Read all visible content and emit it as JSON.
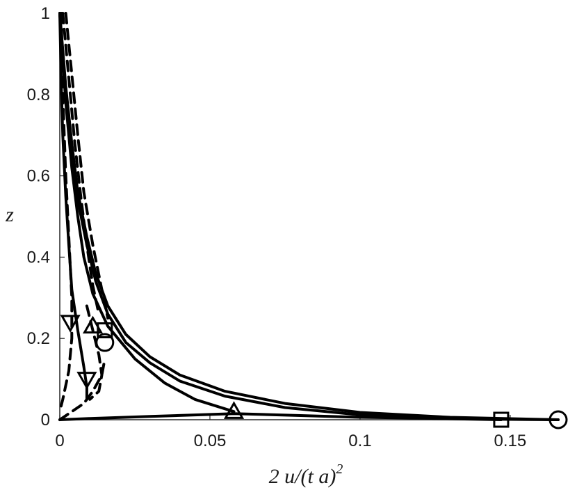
{
  "chart_data": {
    "type": "line",
    "title": "",
    "xlabel": "2 u/(t a)",
    "xlabel_superscript": "2",
    "ylabel": "z",
    "xlim": [
      0,
      0.166
    ],
    "ylim": [
      0,
      1
    ],
    "xticks": [
      0,
      0.05,
      0.1,
      0.15
    ],
    "xtick_labels": [
      "0",
      "0.05",
      "0.1",
      "0.15"
    ],
    "yticks": [
      0,
      0.2,
      0.4,
      0.6,
      0.8,
      1
    ],
    "ytick_labels": [
      "0",
      "0.2",
      "0.4",
      "0.6",
      "0.8",
      "1"
    ],
    "grid": false,
    "color": "#000000",
    "series": [
      {
        "style": "solid",
        "marker": "circle",
        "x": [
          0,
          0.002,
          0.004,
          0.006,
          0.009,
          0.012,
          0.016,
          0.022,
          0.03,
          0.04,
          0.055,
          0.075,
          0.1,
          0.13,
          0.166
        ],
        "y": [
          1,
          0.82,
          0.68,
          0.56,
          0.45,
          0.36,
          0.28,
          0.21,
          0.155,
          0.11,
          0.07,
          0.04,
          0.018,
          0.006,
          0
        ],
        "marker_x": [
          0.015,
          0.166
        ],
        "marker_y": [
          0.19,
          0
        ]
      },
      {
        "style": "solid",
        "marker": "square",
        "x": [
          0,
          0.002,
          0.004,
          0.006,
          0.009,
          0.012,
          0.016,
          0.022,
          0.03,
          0.04,
          0.055,
          0.075,
          0.1,
          0.125,
          0.147
        ],
        "y": [
          1,
          0.8,
          0.66,
          0.54,
          0.43,
          0.34,
          0.26,
          0.19,
          0.14,
          0.095,
          0.058,
          0.03,
          0.012,
          0.003,
          0
        ],
        "marker_x": [
          0.015,
          0.147
        ],
        "marker_y": [
          0.22,
          0
        ]
      },
      {
        "style": "solid",
        "marker": "triangle-up",
        "x": [
          0,
          0.002,
          0.004,
          0.006,
          0.008,
          0.011,
          0.016,
          0.025,
          0.035,
          0.045,
          0.058
        ],
        "y": [
          1,
          0.78,
          0.62,
          0.5,
          0.4,
          0.31,
          0.23,
          0.15,
          0.09,
          0.05,
          0.02
        ],
        "marker_x": [
          0.011,
          0.058
        ],
        "marker_y": [
          0.23,
          0.02
        ]
      },
      {
        "style": "solid",
        "marker": "triangle-down",
        "x": [
          0,
          0.0005,
          0.001,
          0.002,
          0.003,
          0.004,
          0.006,
          0.008,
          0.009,
          0.009
        ],
        "y": [
          1,
          0.82,
          0.7,
          0.55,
          0.43,
          0.32,
          0.22,
          0.13,
          0.08,
          0.05
        ],
        "marker_x": [
          0.0035,
          0.009
        ],
        "marker_y": [
          0.24,
          0.1
        ]
      },
      {
        "style": "solid",
        "marker": "none",
        "x": [
          0,
          0.01,
          0.03,
          0.058,
          0.1,
          0.147,
          0.166
        ],
        "y": [
          0,
          0.003,
          0.008,
          0.015,
          0.006,
          0.001,
          0
        ],
        "marker_x": [],
        "marker_y": []
      },
      {
        "style": "dashed",
        "marker": "none",
        "x": [
          0.002,
          0.004,
          0.006,
          0.008,
          0.011,
          0.014,
          0.016
        ],
        "y": [
          1,
          0.85,
          0.7,
          0.56,
          0.43,
          0.32,
          0.25
        ],
        "marker_x": [],
        "marker_y": []
      },
      {
        "style": "dashed",
        "marker": "none",
        "x": [
          0.001,
          0.003,
          0.005,
          0.007,
          0.009,
          0.011,
          0.013
        ],
        "y": [
          1,
          0.84,
          0.68,
          0.55,
          0.43,
          0.33,
          0.26
        ],
        "marker_x": [],
        "marker_y": []
      },
      {
        "style": "dashed",
        "marker": "none",
        "x": [
          0.0005,
          0.001,
          0.002,
          0.003,
          0.004,
          0.004,
          0.003,
          0.001,
          0
        ],
        "y": [
          1,
          0.8,
          0.6,
          0.45,
          0.3,
          0.2,
          0.12,
          0.05,
          0.02
        ],
        "marker_x": [],
        "marker_y": []
      },
      {
        "style": "dashed",
        "marker": "none",
        "x": [
          0.009,
          0.011,
          0.013,
          0.014,
          0.013,
          0.01
        ],
        "y": [
          0.28,
          0.22,
          0.16,
          0.11,
          0.07,
          0.05
        ],
        "marker_x": [],
        "marker_y": []
      },
      {
        "style": "dashed",
        "marker": "none",
        "x": [
          0,
          0.004,
          0.008,
          0.011,
          0.014,
          0.015
        ],
        "y": [
          0,
          0.02,
          0.04,
          0.07,
          0.11,
          0.15
        ],
        "marker_x": [],
        "marker_y": []
      }
    ]
  }
}
